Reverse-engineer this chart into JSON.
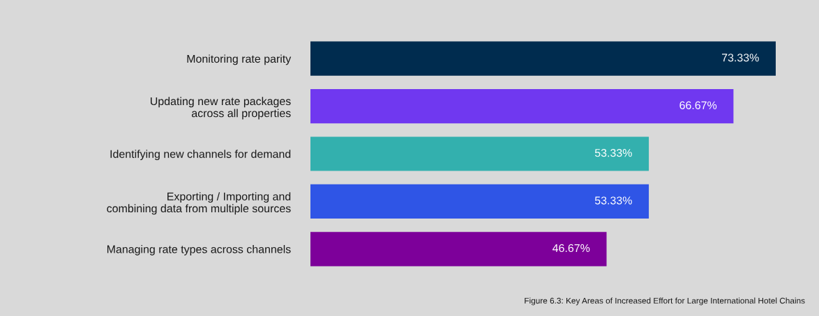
{
  "chart_data": {
    "type": "bar",
    "orientation": "horizontal",
    "value_labels": [
      "73.33%",
      "66.67%",
      "53.33%",
      "53.33%",
      "46.67%"
    ],
    "categories": [
      "Monitoring rate parity",
      "Updating new rate packages\nacross all properties",
      "Identifying new channels for demand",
      "Exporting / Importing and\ncombining data from multiple sources",
      "Managing rate types across channels"
    ],
    "values": [
      73.33,
      66.67,
      53.33,
      53.33,
      46.67
    ],
    "colors": [
      "#002c4f",
      "#7038f0",
      "#33b0ae",
      "#2f55e6",
      "#7d009a"
    ],
    "annotations": [
      "Figure 6.3: Key Areas of Increased Effort for Large International Hotel Chains"
    ],
    "grid": false,
    "legend": false
  }
}
